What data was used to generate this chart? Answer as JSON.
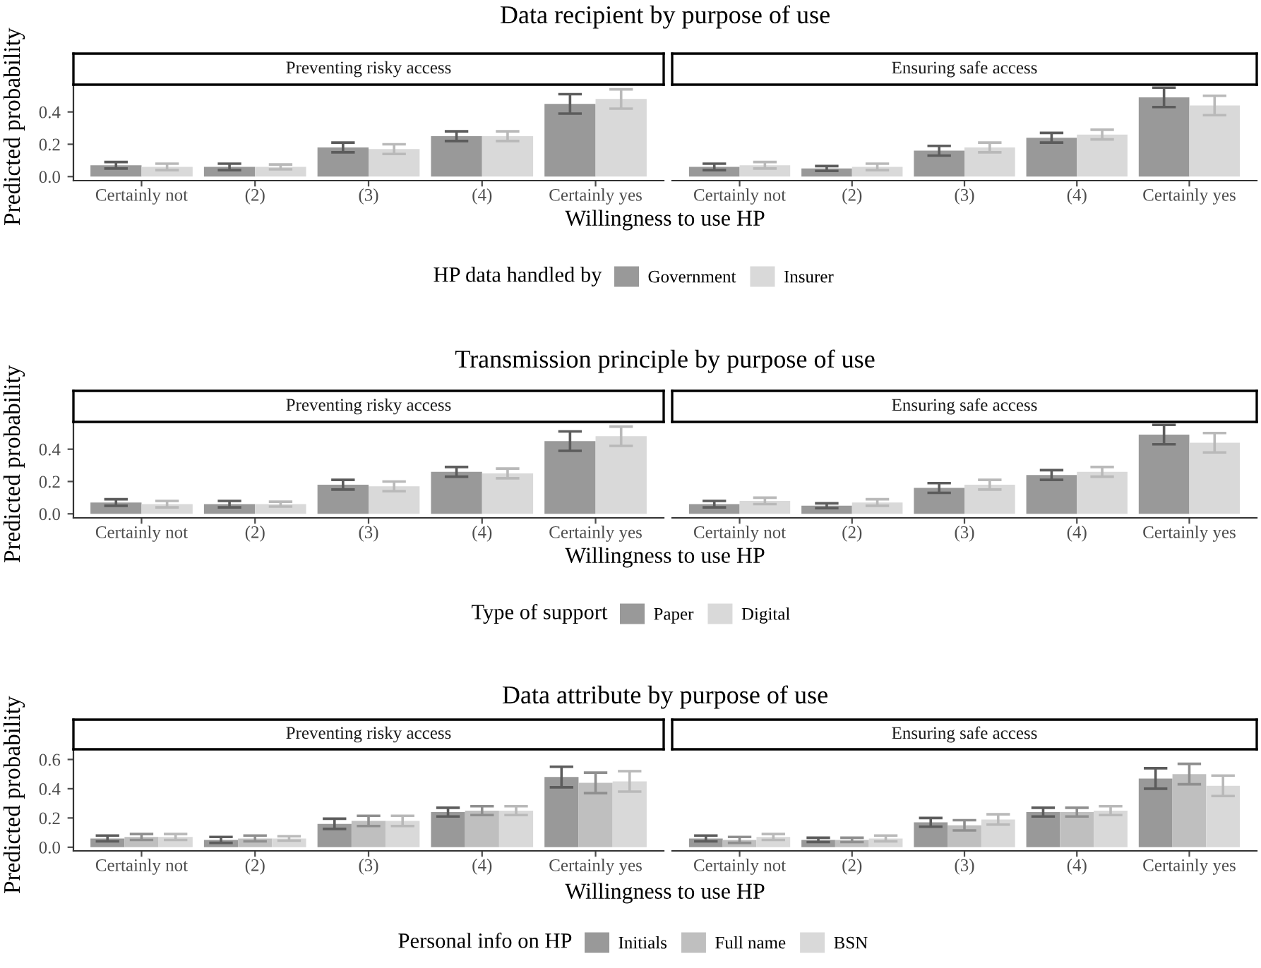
{
  "chart_data": [
    {
      "type": "bar",
      "title": "Data recipient by purpose of use",
      "subtitle": "Preventing risky access",
      "xlabel": "Willingness to use HP",
      "ylabel": "Predicted probability",
      "legend_title": "HP data handled by",
      "legend": "bottom",
      "grid": false,
      "categories": [
        "Certainly not",
        "(2)",
        "(3)",
        "(4)",
        "Certainly yes"
      ],
      "ylim": [
        -0.025,
        0.56
      ],
      "yticks": [
        {
          "value": 0,
          "label": "0.0"
        },
        {
          "value": 0.2,
          "label": "0.2"
        },
        {
          "value": 0.4,
          "label": "0.4"
        }
      ],
      "series": [
        {
          "name": "Government",
          "color": "#999999",
          "values": [
            0.07,
            0.06,
            0.18,
            0.25,
            0.45
          ],
          "errors": [
            0.02,
            0.02,
            0.03,
            0.03,
            0.06
          ]
        },
        {
          "name": "Insurer",
          "color": "#d9d9d9",
          "values": [
            0.06,
            0.06,
            0.17,
            0.25,
            0.48
          ],
          "errors": [
            0.02,
            0.015,
            0.03,
            0.03,
            0.06
          ]
        }
      ]
    },
    {
      "type": "bar",
      "subtitle": "Ensuring safe access",
      "tick_labels": "x",
      "grid": false,
      "categories": [
        "Certainly not",
        "(2)",
        "(3)",
        "(4)",
        "Certainly yes"
      ],
      "ylim": [
        -0.025,
        0.56
      ],
      "series": [
        {
          "color": "#999999",
          "values": [
            0.06,
            0.05,
            0.16,
            0.24,
            0.49
          ],
          "errors": [
            0.02,
            0.015,
            0.03,
            0.03,
            0.06
          ]
        },
        {
          "color": "#d9d9d9",
          "values": [
            0.07,
            0.06,
            0.18,
            0.26,
            0.44
          ],
          "errors": [
            0.02,
            0.02,
            0.03,
            0.03,
            0.06
          ]
        }
      ]
    },
    {
      "type": "bar",
      "title": "Transmission principle by purpose of use",
      "subtitle": "Preventing risky access",
      "xlabel": "Willingness to use HP",
      "ylabel": "Predicted probability",
      "legend_title": "Type of support",
      "legend": "bottom",
      "grid": false,
      "categories": [
        "Certainly not",
        "(2)",
        "(3)",
        "(4)",
        "Certainly yes"
      ],
      "ylim": [
        -0.025,
        0.56
      ],
      "yticks": [
        {
          "value": 0,
          "label": "0.0"
        },
        {
          "value": 0.2,
          "label": "0.2"
        },
        {
          "value": 0.4,
          "label": "0.4"
        }
      ],
      "series": [
        {
          "name": "Paper",
          "color": "#999999",
          "values": [
            0.07,
            0.06,
            0.18,
            0.26,
            0.45
          ],
          "errors": [
            0.02,
            0.02,
            0.03,
            0.03,
            0.06
          ]
        },
        {
          "name": "Digital",
          "color": "#d9d9d9",
          "values": [
            0.06,
            0.06,
            0.17,
            0.25,
            0.48
          ],
          "errors": [
            0.02,
            0.015,
            0.03,
            0.03,
            0.06
          ]
        }
      ]
    },
    {
      "type": "bar",
      "subtitle": "Ensuring safe access",
      "tick_labels": "x",
      "grid": false,
      "categories": [
        "Certainly not",
        "(2)",
        "(3)",
        "(4)",
        "Certainly yes"
      ],
      "ylim": [
        -0.025,
        0.56
      ],
      "series": [
        {
          "color": "#999999",
          "values": [
            0.06,
            0.05,
            0.16,
            0.24,
            0.49
          ],
          "errors": [
            0.02,
            0.015,
            0.03,
            0.03,
            0.06
          ]
        },
        {
          "color": "#d9d9d9",
          "values": [
            0.08,
            0.07,
            0.18,
            0.26,
            0.44
          ],
          "errors": [
            0.02,
            0.02,
            0.03,
            0.03,
            0.06
          ]
        }
      ]
    },
    {
      "type": "bar",
      "title": "Data attribute by purpose of use",
      "subtitle": "Preventing risky access",
      "xlabel": "Willingness to use HP",
      "ylabel": "Predicted probability",
      "legend_title": "Personal info on HP",
      "legend": "bottom",
      "grid": false,
      "categories": [
        "Certainly not",
        "(2)",
        "(3)",
        "(4)",
        "Certainly yes"
      ],
      "ylim": [
        -0.025,
        0.66
      ],
      "yticks": [
        {
          "value": 0,
          "label": "0.0"
        },
        {
          "value": 0.2,
          "label": "0.2"
        },
        {
          "value": 0.4,
          "label": "0.4"
        },
        {
          "value": 0.6,
          "label": "0.6"
        }
      ],
      "series": [
        {
          "name": "Initials",
          "color": "#999999",
          "values": [
            0.06,
            0.05,
            0.16,
            0.24,
            0.48
          ],
          "errors": [
            0.02,
            0.02,
            0.035,
            0.03,
            0.07
          ]
        },
        {
          "name": "Full name",
          "color": "#bfbfbf",
          "values": [
            0.07,
            0.06,
            0.18,
            0.25,
            0.44
          ],
          "errors": [
            0.02,
            0.02,
            0.035,
            0.03,
            0.07
          ]
        },
        {
          "name": "BSN",
          "color": "#d9d9d9",
          "values": [
            0.07,
            0.06,
            0.18,
            0.25,
            0.45
          ],
          "errors": [
            0.02,
            0.015,
            0.035,
            0.03,
            0.07
          ]
        }
      ]
    },
    {
      "type": "bar",
      "subtitle": "Ensuring safe access",
      "tick_labels": "x",
      "grid": false,
      "categories": [
        "Certainly not",
        "(2)",
        "(3)",
        "(4)",
        "Certainly yes"
      ],
      "ylim": [
        -0.025,
        0.66
      ],
      "series": [
        {
          "color": "#999999",
          "values": [
            0.06,
            0.05,
            0.17,
            0.24,
            0.47
          ],
          "errors": [
            0.02,
            0.015,
            0.03,
            0.03,
            0.07
          ]
        },
        {
          "color": "#bfbfbf",
          "values": [
            0.05,
            0.05,
            0.15,
            0.24,
            0.5
          ],
          "errors": [
            0.02,
            0.015,
            0.035,
            0.03,
            0.07
          ]
        },
        {
          "color": "#d9d9d9",
          "values": [
            0.07,
            0.06,
            0.19,
            0.25,
            0.42
          ],
          "errors": [
            0.02,
            0.02,
            0.035,
            0.03,
            0.07
          ]
        }
      ]
    }
  ]
}
